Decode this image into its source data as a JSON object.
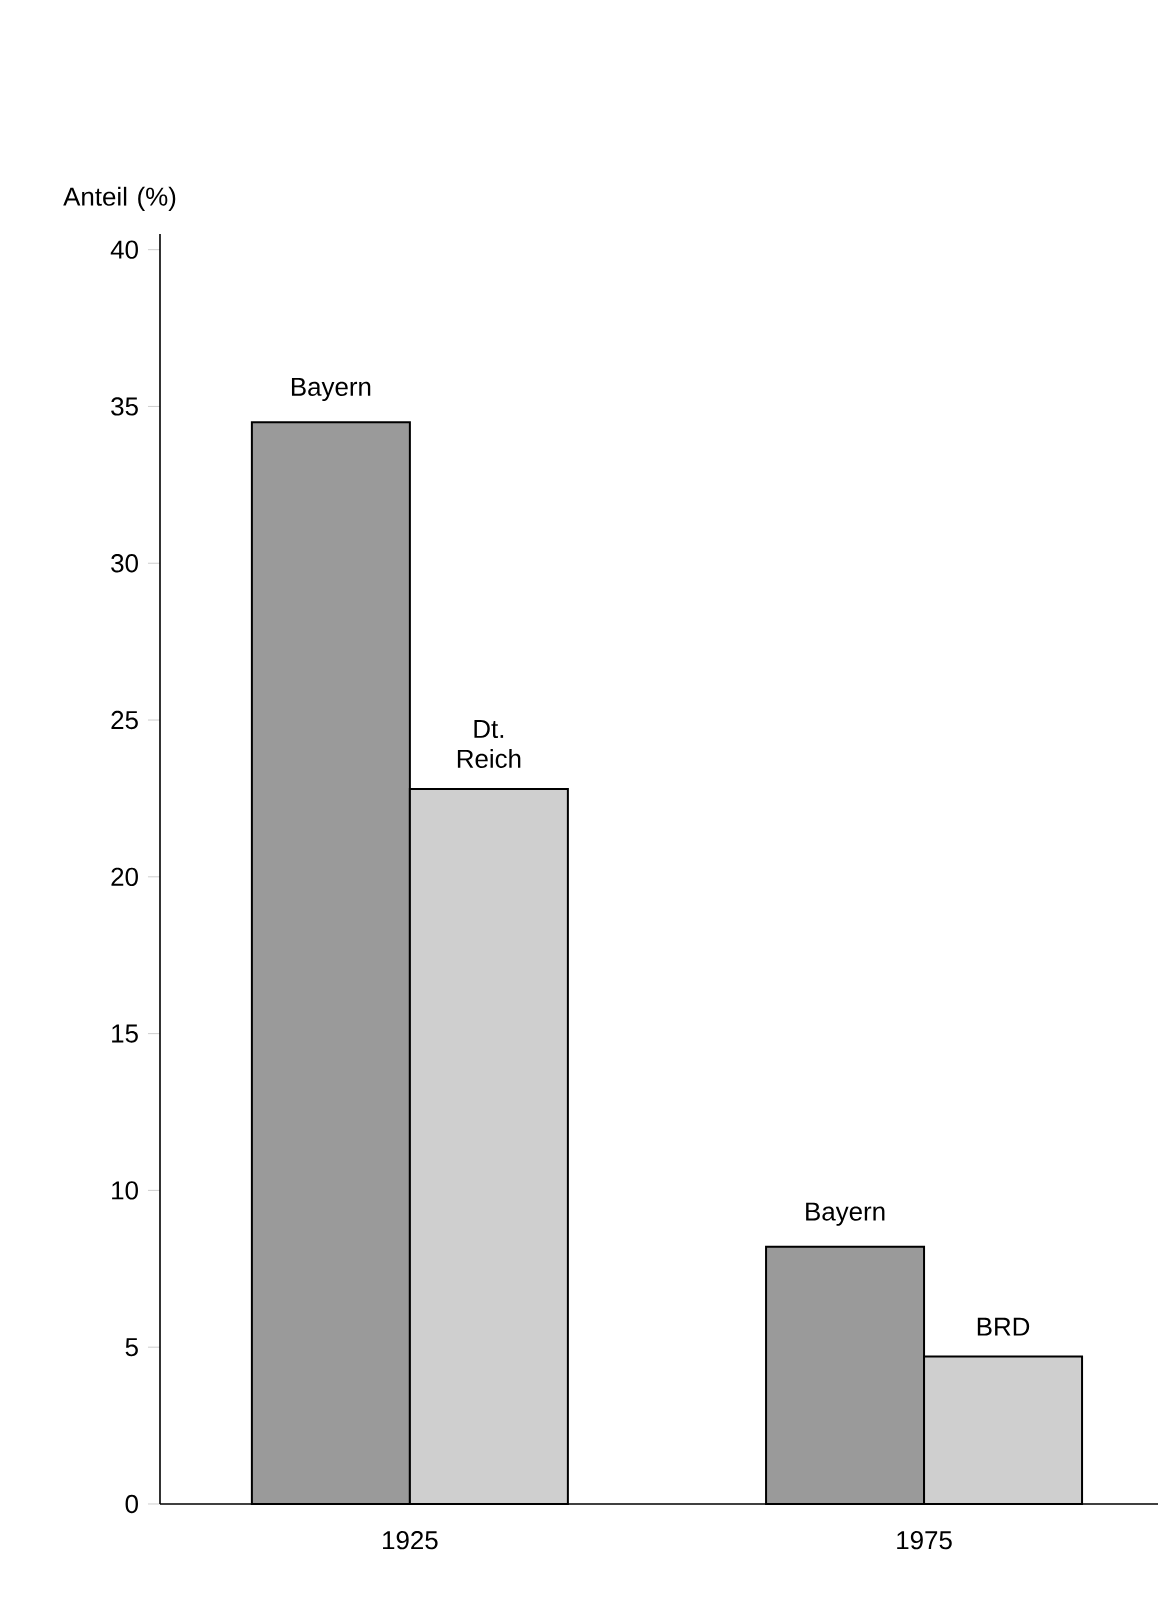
{
  "chart_data": {
    "type": "bar",
    "ylabel": "Anteil (%)",
    "categories": [
      "1925",
      "1975"
    ],
    "series": [
      {
        "name": "Bayern",
        "color": "#9a9a9a",
        "values": [
          34.5,
          8.2
        ]
      },
      {
        "color": "#cfcfcf",
        "values": [
          22.8,
          4.7
        ]
      }
    ],
    "annotations": [
      {
        "text": "Dt. Reich",
        "x": "1925",
        "y": 22.8
      },
      {
        "text": "BRD",
        "x": "1975",
        "y": 4.7
      }
    ],
    "ylim": [
      0,
      40.5
    ],
    "yticks": [
      0,
      5,
      10,
      15,
      20,
      25,
      30,
      35,
      40
    ]
  }
}
